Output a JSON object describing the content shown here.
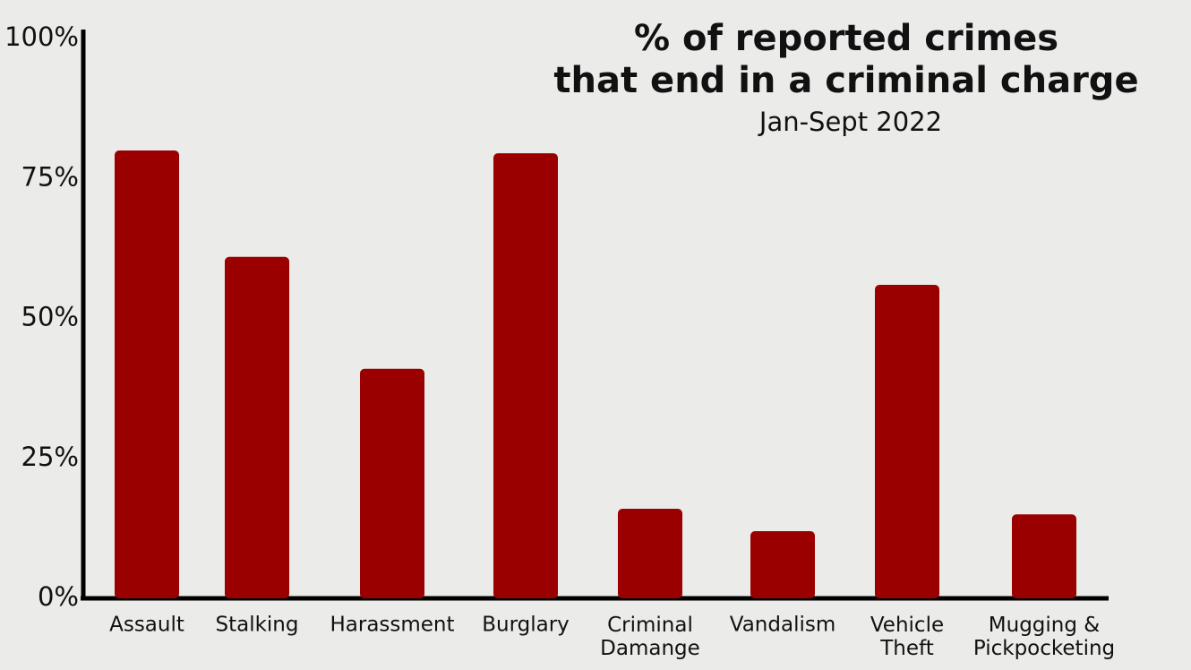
{
  "chart_data": {
    "type": "bar",
    "title": [
      "% of reported crimes",
      "that end in a criminal charge"
    ],
    "subtitle": "Jan-Sept 2022",
    "categories": [
      "Assault",
      "Stalking",
      "Harassment",
      "Burglary",
      "Criminal\nDamange",
      "Vandalism",
      "Vehicle\nTheft",
      "Mugging &\nPickpocketing"
    ],
    "values": [
      80,
      61,
      41,
      79.5,
      16,
      12,
      56,
      15
    ],
    "color": "#9b0000",
    "ylim": [
      0,
      100
    ],
    "yticks": [
      {
        "value": 0,
        "label": "0%"
      },
      {
        "value": 25,
        "label": "25%"
      },
      {
        "value": 50,
        "label": "50%"
      },
      {
        "value": 75,
        "label": "75%"
      },
      {
        "value": 100,
        "label": "100%"
      }
    ],
    "grid": false
  }
}
